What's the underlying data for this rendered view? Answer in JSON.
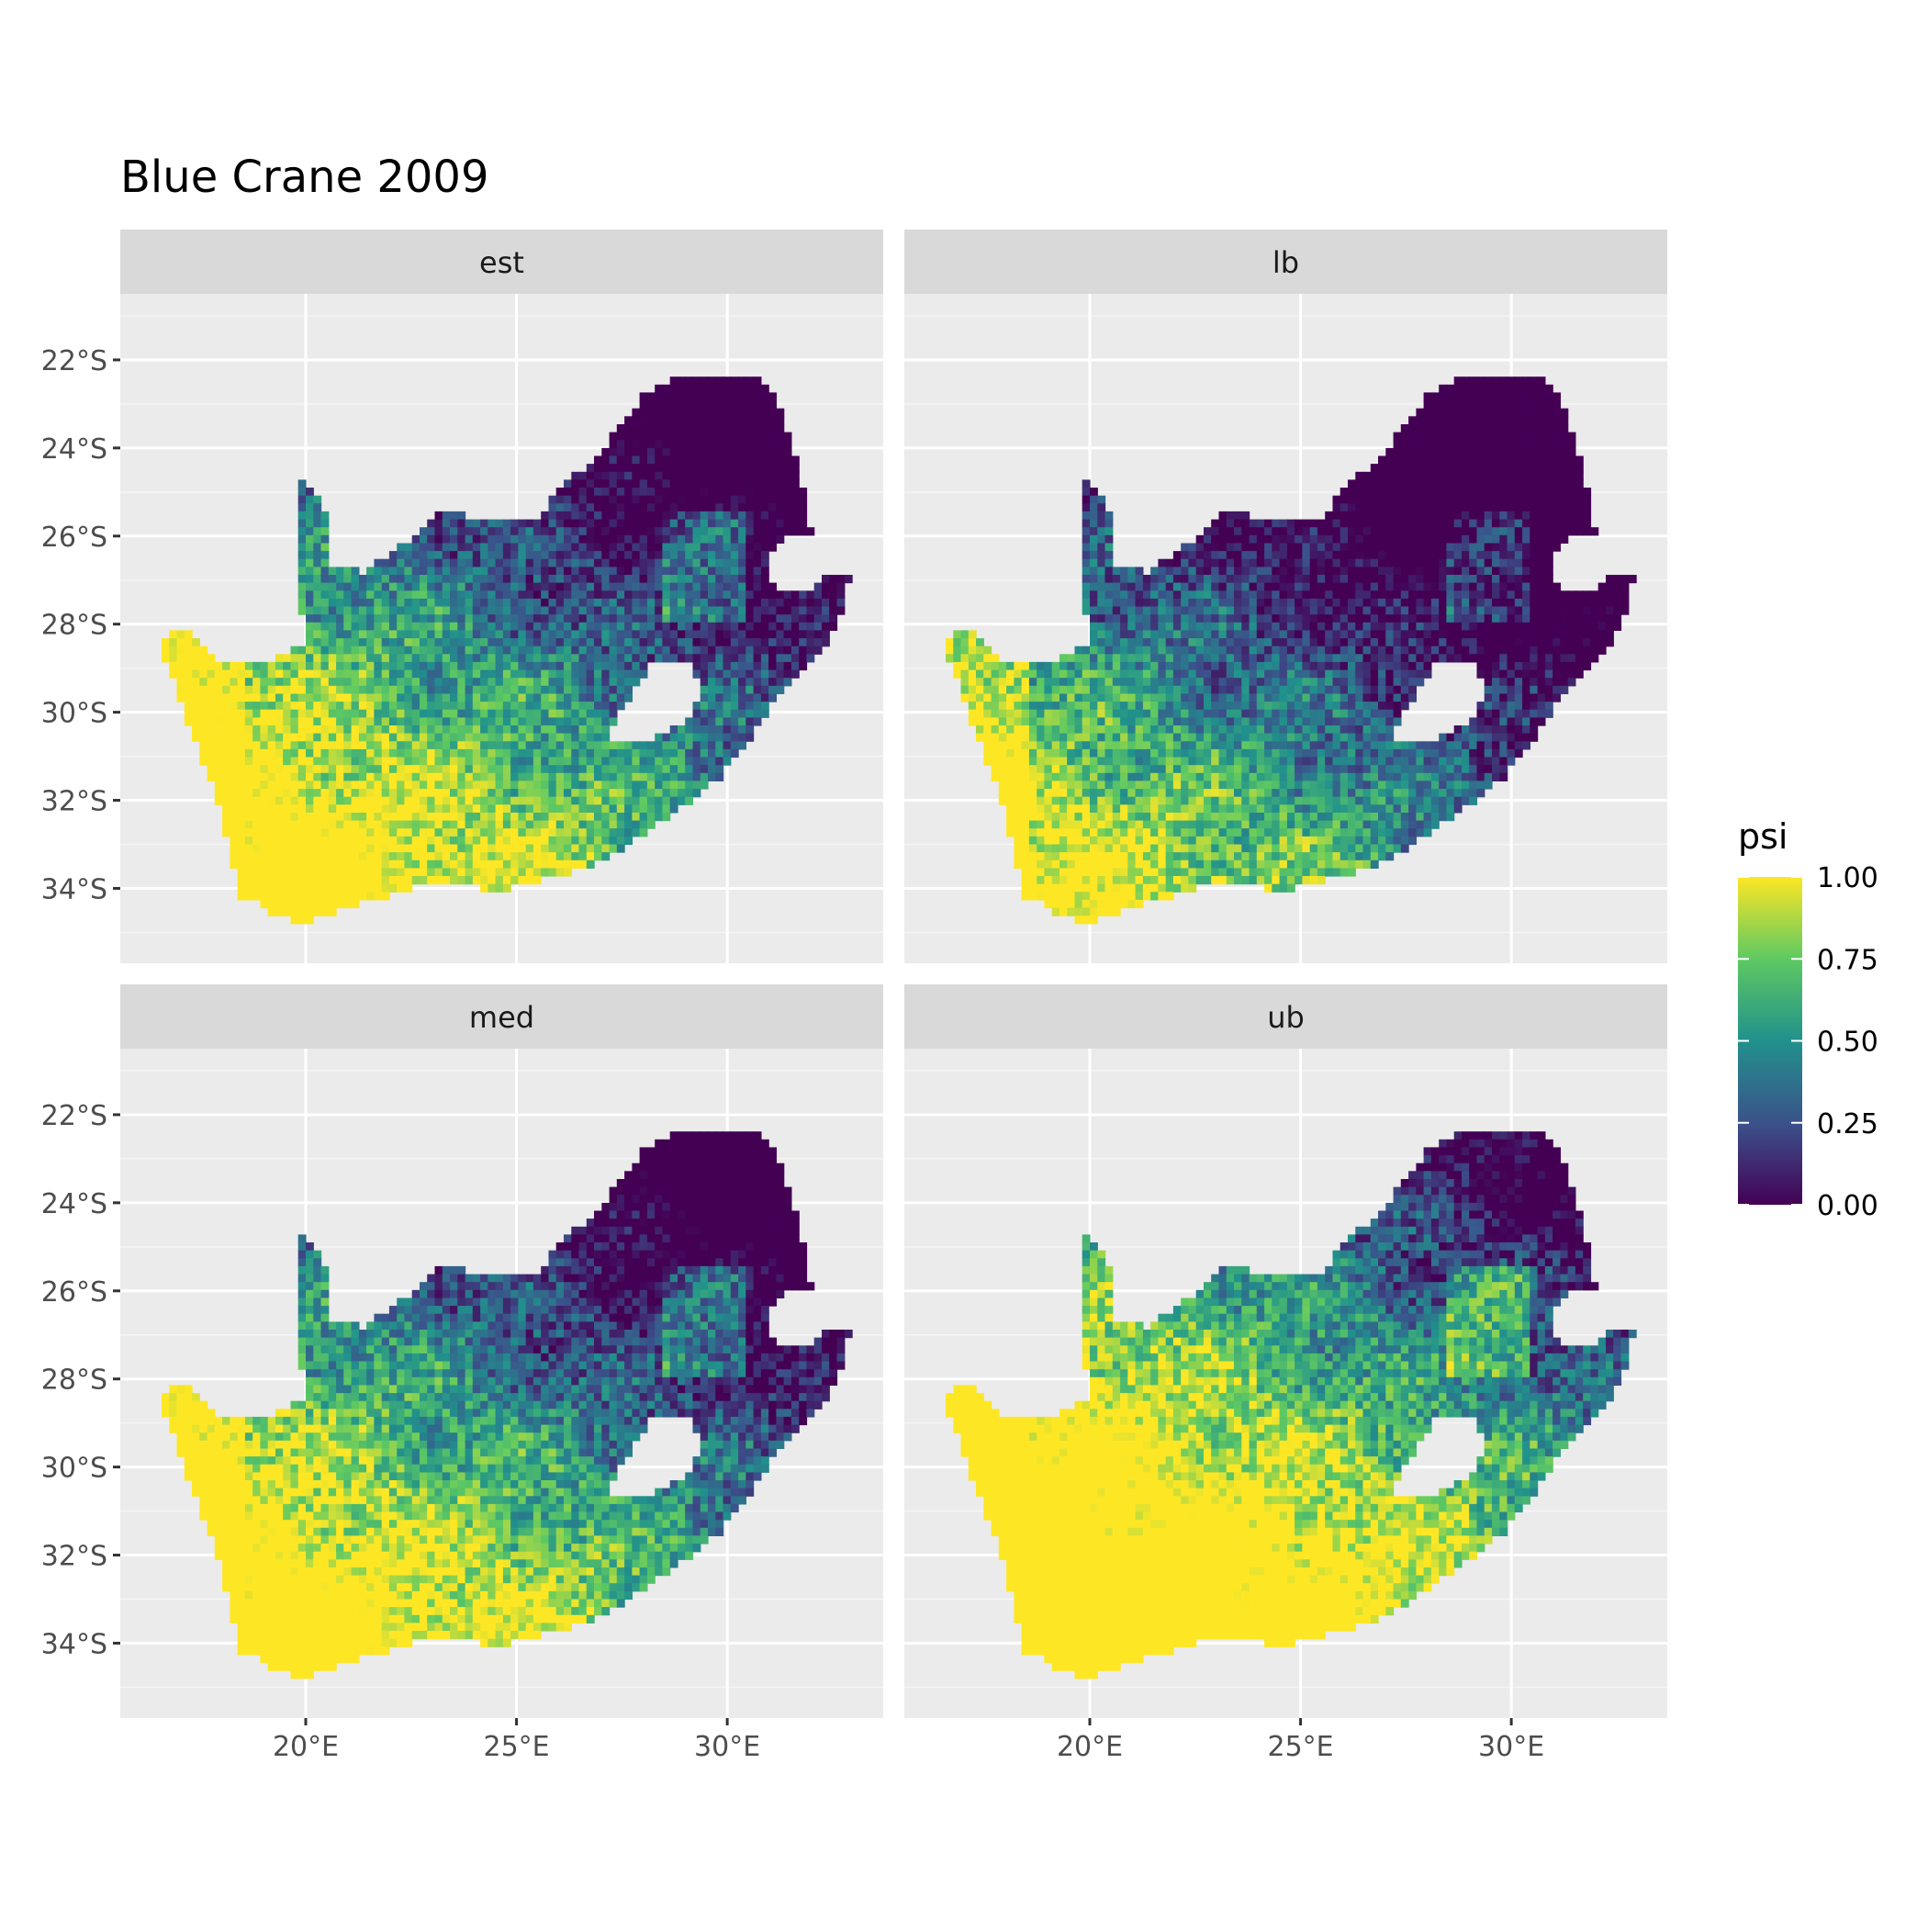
{
  "title": "Blue Crane 2009",
  "panels": [
    {
      "label": "est"
    },
    {
      "label": "lb"
    },
    {
      "label": "med"
    },
    {
      "label": "ub"
    }
  ],
  "y_ticks": [
    "22°S",
    "24°S",
    "26°S",
    "28°S",
    "30°S",
    "32°S",
    "34°S"
  ],
  "x_ticks": [
    "20°E",
    "25°E",
    "30°E"
  ],
  "legend": {
    "title": "psi",
    "ticks": [
      "1.00",
      "0.75",
      "0.50",
      "0.25",
      "0.00"
    ],
    "colormap": "viridis"
  },
  "colors": {
    "panel_bg": "#EBEBEB",
    "strip_bg": "#D9D9D9",
    "grid": "#FFFFFF",
    "low": "#440154",
    "mid": "#21918C",
    "high": "#FDE725"
  },
  "chart_data": {
    "type": "heatmap",
    "title": "Blue Crane 2009",
    "facets": [
      "est",
      "lb",
      "med",
      "ub"
    ],
    "x_ticks_deg_east": [
      20,
      25,
      30
    ],
    "y_ticks_deg_south": [
      22,
      24,
      26,
      28,
      30,
      32,
      34
    ],
    "xlim_deg_east": [
      15.6,
      33.7
    ],
    "ylim_deg_south": [
      20.5,
      35.7
    ],
    "value_name": "psi",
    "value_range": [
      0,
      1
    ]
  }
}
